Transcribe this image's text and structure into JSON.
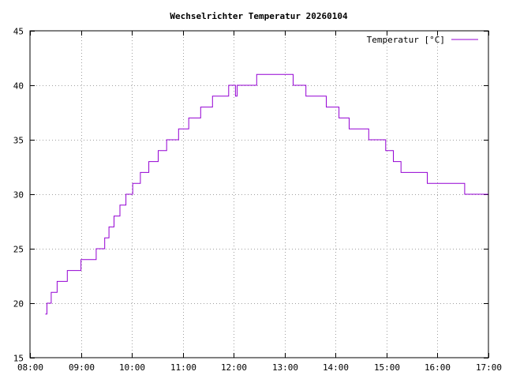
{
  "chart_data": {
    "type": "line",
    "title": "Wechselrichter Temperatur 20260104",
    "xlabel": "",
    "ylabel": "",
    "xlim": [
      "08:00",
      "17:00"
    ],
    "ylim": [
      15,
      45
    ],
    "x_ticks": [
      "08:00",
      "09:00",
      "10:00",
      "11:00",
      "12:00",
      "13:00",
      "14:00",
      "15:00",
      "16:00",
      "17:00"
    ],
    "y_ticks": [
      15,
      20,
      25,
      30,
      35,
      40,
      45
    ],
    "grid": true,
    "legend_position": "top-right",
    "series": [
      {
        "name": "Temperatur [°C]",
        "color": "#9400d3",
        "step": true,
        "points": [
          [
            "08:18",
            19
          ],
          [
            "08:20",
            20
          ],
          [
            "08:25",
            21
          ],
          [
            "08:32",
            22
          ],
          [
            "08:44",
            23
          ],
          [
            "09:00",
            24
          ],
          [
            "09:18",
            25
          ],
          [
            "09:28",
            26
          ],
          [
            "09:33",
            27
          ],
          [
            "09:39",
            28
          ],
          [
            "09:46",
            29
          ],
          [
            "09:53",
            30
          ],
          [
            "10:01",
            31
          ],
          [
            "10:10",
            32
          ],
          [
            "10:20",
            33
          ],
          [
            "10:31",
            34
          ],
          [
            "10:41",
            35
          ],
          [
            "10:55",
            36
          ],
          [
            "11:07",
            37
          ],
          [
            "11:21",
            38
          ],
          [
            "11:35",
            39
          ],
          [
            "11:54",
            40
          ],
          [
            "12:02",
            39
          ],
          [
            "12:04",
            40
          ],
          [
            "12:27",
            41
          ],
          [
            "13:10",
            40
          ],
          [
            "13:25",
            39
          ],
          [
            "13:49",
            38
          ],
          [
            "14:04",
            37
          ],
          [
            "14:16",
            36
          ],
          [
            "14:39",
            35
          ],
          [
            "14:59",
            34
          ],
          [
            "15:08",
            33
          ],
          [
            "15:17",
            32
          ],
          [
            "15:48",
            31
          ],
          [
            "16:32",
            30
          ],
          [
            "17:00",
            30
          ]
        ]
      }
    ]
  }
}
